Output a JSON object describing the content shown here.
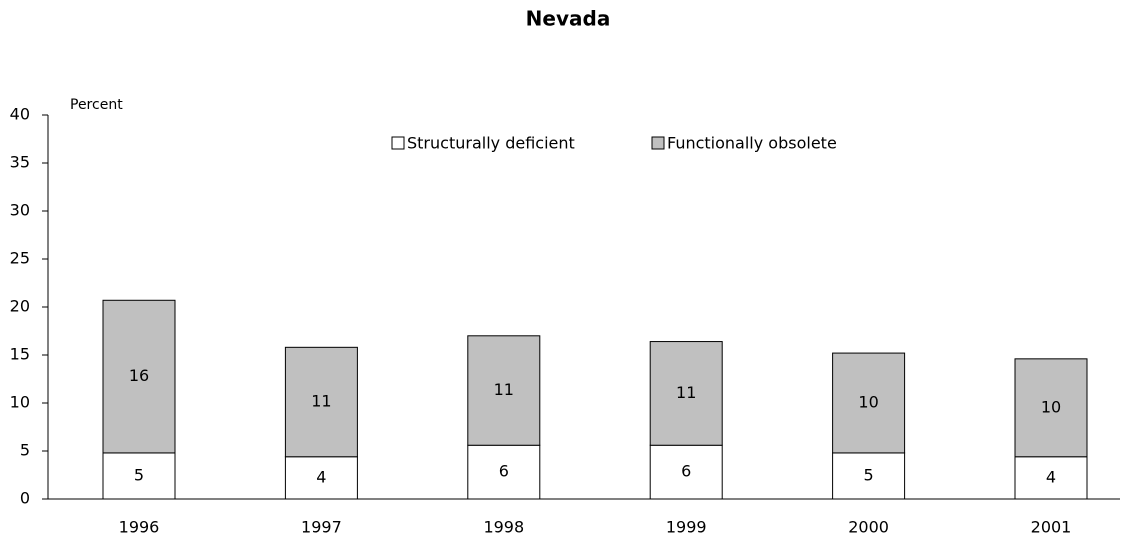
{
  "chart_data": {
    "type": "stacked_bar",
    "title": "Nevada",
    "y_label": "Percent",
    "categories": [
      "1996",
      "1997",
      "1998",
      "1999",
      "2000",
      "2001"
    ],
    "series": [
      {
        "name": "Structurally deficient",
        "color": "#ffffff",
        "values": [
          4.8,
          4.4,
          5.6,
          5.6,
          4.8,
          4.4
        ],
        "value_labels": [
          "5",
          "4",
          "6",
          "6",
          "5",
          "4"
        ]
      },
      {
        "name": "Functionally obsolete",
        "color": "#c0c0c0",
        "values": [
          15.9,
          11.4,
          11.4,
          10.8,
          10.4,
          10.2
        ],
        "value_labels": [
          "16",
          "11",
          "11",
          "11",
          "10",
          "10"
        ]
      }
    ],
    "ylim": [
      0,
      40
    ],
    "yticks": [
      0,
      5,
      10,
      15,
      20,
      25,
      30,
      35,
      40
    ],
    "grid": false,
    "legend": "top"
  }
}
